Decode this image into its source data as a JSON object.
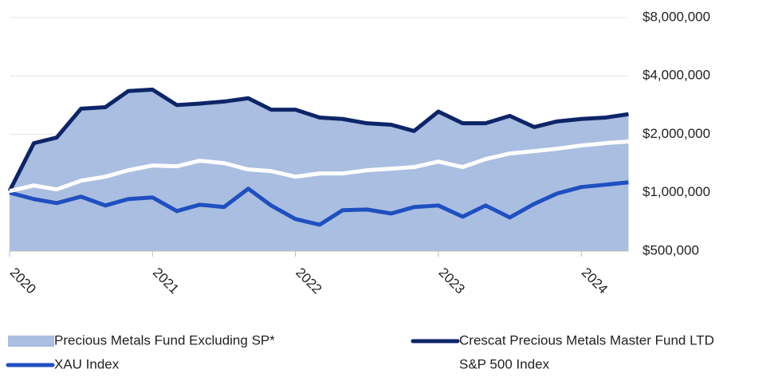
{
  "chart_data": {
    "type": "line",
    "x": [
      2020,
      2020.17,
      2020.33,
      2020.5,
      2020.67,
      2020.83,
      2021,
      2021.17,
      2021.33,
      2021.5,
      2021.67,
      2021.83,
      2022,
      2022.17,
      2022.33,
      2022.5,
      2022.67,
      2022.83,
      2023,
      2023.17,
      2023.33,
      2023.5,
      2023.67,
      2023.83,
      2024,
      2024.17,
      2024.33
    ],
    "series": [
      {
        "name": "Precious Metals Fund Excluding SP*",
        "style": "area",
        "color": "#a9bee0",
        "values": [
          1020000,
          1800000,
          1925000,
          2710000,
          2760000,
          3340000,
          3400000,
          2830000,
          2880000,
          2950000,
          3070000,
          2680000,
          2680000,
          2440000,
          2400000,
          2280000,
          2240000,
          2080000,
          2620000,
          2280000,
          2280000,
          2490000,
          2180000,
          2330000,
          2400000,
          2440000,
          2540000
        ]
      },
      {
        "name": "Crescat Precious Metals Master Fund LTD",
        "style": "line",
        "color": "#0d2568",
        "values": [
          1020000,
          1800000,
          1925000,
          2710000,
          2760000,
          3340000,
          3400000,
          2830000,
          2880000,
          2950000,
          3070000,
          2680000,
          2680000,
          2440000,
          2400000,
          2280000,
          2240000,
          2080000,
          2620000,
          2280000,
          2280000,
          2490000,
          2180000,
          2330000,
          2400000,
          2440000,
          2540000
        ]
      },
      {
        "name": "XAU Index",
        "style": "line",
        "color": "#1f4fc0",
        "values": [
          1000000,
          927000,
          884000,
          954000,
          859000,
          927000,
          945000,
          804000,
          867000,
          843000,
          1048000,
          859000,
          731000,
          684000,
          812000,
          819000,
          781000,
          843000,
          859000,
          752000,
          859000,
          745000,
          875000,
          990000,
          1069000,
          1100000,
          1131000
        ]
      },
      {
        "name": "S&P 500 Index",
        "style": "line",
        "color": "#ffffff",
        "values": [
          1020000,
          1089000,
          1039000,
          1153000,
          1209000,
          1305000,
          1381000,
          1368000,
          1462000,
          1421000,
          1317000,
          1292000,
          1209000,
          1256000,
          1256000,
          1305000,
          1330000,
          1355000,
          1448000,
          1355000,
          1490000,
          1592000,
          1638000,
          1685000,
          1751000,
          1801000,
          1836000
        ]
      }
    ],
    "xlim": [
      2020,
      2024.35
    ],
    "xticks": [
      2020,
      2021,
      2022,
      2023,
      2024
    ],
    "ylim": [
      500000,
      8000000
    ],
    "log_y": true,
    "grid": true,
    "yticks": [
      {
        "value": 500000,
        "label": "$500,000"
      },
      {
        "value": 1000000,
        "label": "$1,000,000"
      },
      {
        "value": 2000000,
        "label": "$2,000,000"
      },
      {
        "value": 4000000,
        "label": "$4,000,000"
      },
      {
        "value": 8000000,
        "label": "$8,000,000"
      }
    ]
  }
}
